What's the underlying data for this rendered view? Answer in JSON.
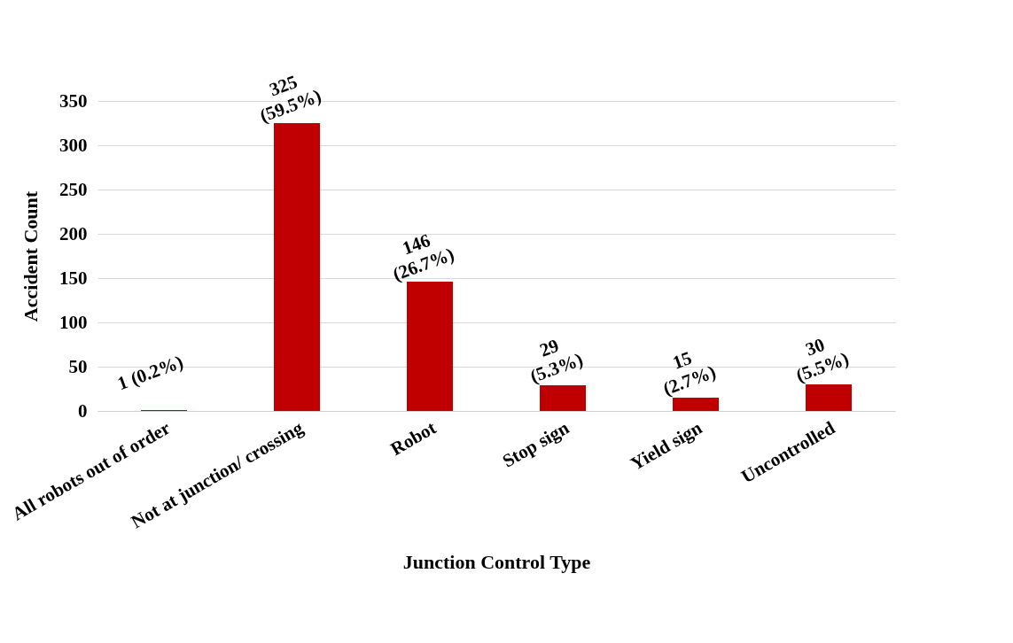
{
  "chart_data": {
    "type": "bar",
    "xlabel": "Junction Control Type",
    "ylabel": "Accident Count",
    "categories": [
      "All robots out of order",
      "Not at junction/ crossing",
      "Robot",
      "Stop sign",
      "Yield sign",
      "Uncontrolled"
    ],
    "values": [
      1,
      325,
      146,
      29,
      15,
      30
    ],
    "color": "#c00000",
    "value_labels": [
      "1 (0.2%)",
      "325\n(59.5%)",
      "146\n(26.7%)",
      "29\n(5.3%)",
      "15\n(2.7%)",
      "30\n(5.5%)"
    ],
    "ylim": [
      0,
      350
    ],
    "yticks": [
      0,
      50,
      100,
      150,
      200,
      250,
      300,
      350
    ],
    "grid": "y"
  }
}
